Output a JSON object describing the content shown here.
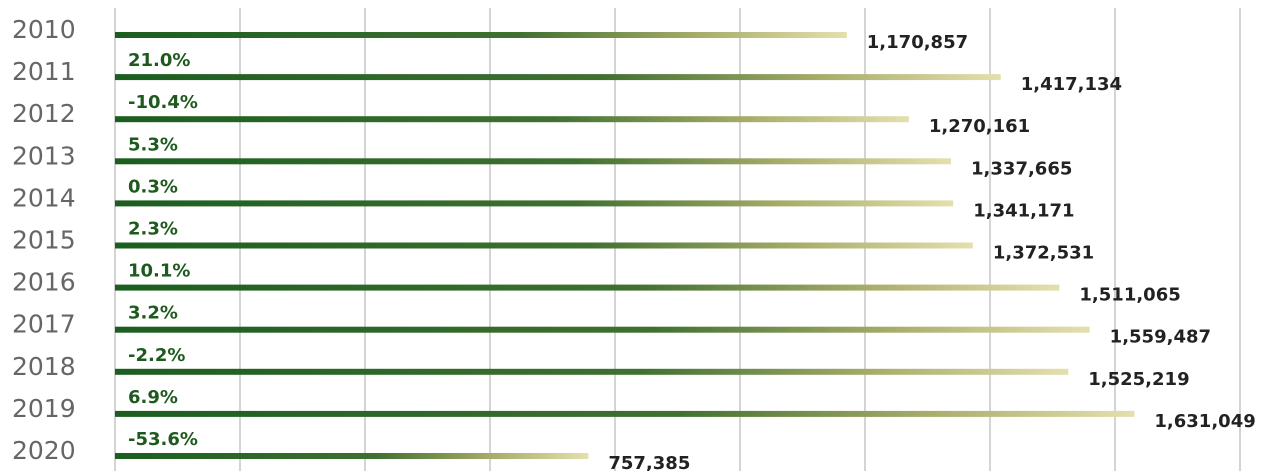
{
  "chart_data": {
    "type": "hbar",
    "categories": [
      "2010",
      "2011",
      "2012",
      "2013",
      "2014",
      "2015",
      "2016",
      "2017",
      "2018",
      "2019",
      "2020"
    ],
    "values": [
      1170857,
      1417134,
      1270161,
      1337665,
      1341171,
      1372531,
      1511065,
      1559487,
      1525219,
      1631049,
      757385
    ],
    "value_labels": [
      "1,170,857",
      "1,417,134",
      "1,270,161",
      "1,337,665",
      "1,341,171",
      "1,372,531",
      "1,511,065",
      "1,559,487",
      "1,525,219",
      "1,631,049",
      "757,385"
    ],
    "change_labels": [
      null,
      "21.0%",
      "-10.4%",
      "5.3%",
      "0.3%",
      "2.3%",
      "10.1%",
      "3.2%",
      "-2.2%",
      "6.9%",
      "-53.6%"
    ],
    "color": "#1b5e20",
    "xlim": [
      0,
      1840000
    ],
    "xticks": [
      0,
      200000,
      400000,
      600000,
      800000,
      1000000,
      1200000,
      1400000,
      1600000,
      1800000
    ],
    "grid": true
  }
}
